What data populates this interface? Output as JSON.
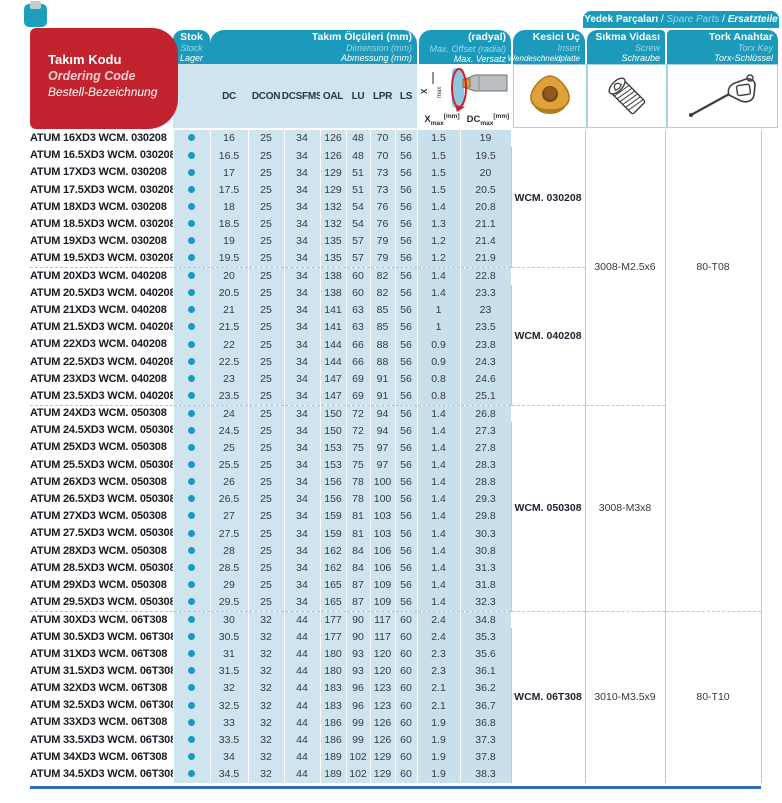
{
  "headers": {
    "ordering_code": {
      "tr": "Takım Kodu",
      "en": "Ordering Code",
      "de": "Bestell-Bezeichnung"
    },
    "stock": {
      "tr": "Stok",
      "en": "Stock",
      "de": "Lager"
    },
    "dimensions": {
      "tr": "Takım Ölçüleri (mm)",
      "en": "Dimension (mm)",
      "de": "Abmessung (mm)"
    },
    "offset": {
      "tr": "Maks. Ofset (radyal)",
      "en": "Max. Offset (radial)",
      "de": "Max. Versatz (radial)"
    },
    "spare_parts": {
      "tr": "Yedek Parçaları",
      "en": "Spare Parts",
      "de": "Ersatzteile",
      "sep": " / "
    },
    "insert": {
      "tr": "Kesici Uç",
      "en": "Insert",
      "de": "Wendeschneidplatte"
    },
    "screw": {
      "tr": "Sıkma Vidası",
      "en": "Screw",
      "de": "Schraube"
    },
    "torx": {
      "tr": "Tork Anahtar",
      "en": "Torx Key",
      "de": "Torx-Schlüssel"
    }
  },
  "dim_columns": [
    "DC",
    "DCON",
    "DCSFMS",
    "OAL",
    "LU",
    "LPR",
    "LS"
  ],
  "offset_sub": {
    "xmax": {
      "base": "X",
      "sub": "max",
      "unit": "[mm]"
    },
    "dcmax": {
      "base": "DC",
      "sub": "max",
      "unit": "[mm]"
    },
    "diagram_label": {
      "base": "X",
      "sub": "max"
    }
  },
  "rows": [
    [
      "ATUM 16XD3 WCM. 030208",
      16,
      25,
      34,
      126,
      48,
      70,
      56,
      1.5,
      19
    ],
    [
      "ATUM 16.5XD3 WCM. 030208",
      16.5,
      25,
      34,
      126,
      48,
      70,
      56,
      1.5,
      19.5
    ],
    [
      "ATUM 17XD3 WCM. 030208",
      17,
      25,
      34,
      129,
      51,
      73,
      56,
      1.5,
      20
    ],
    [
      "ATUM 17.5XD3 WCM. 030208",
      17.5,
      25,
      34,
      129,
      51,
      73,
      56,
      1.5,
      20.5
    ],
    [
      "ATUM 18XD3 WCM. 030208",
      18,
      25,
      34,
      132,
      54,
      76,
      56,
      1.4,
      20.8
    ],
    [
      "ATUM 18.5XD3 WCM. 030208",
      18.5,
      25,
      34,
      132,
      54,
      76,
      56,
      1.3,
      21.1
    ],
    [
      "ATUM 19XD3 WCM. 030208",
      19,
      25,
      34,
      135,
      57,
      79,
      56,
      1.2,
      21.4
    ],
    [
      "ATUM 19.5XD3 WCM. 030208",
      19.5,
      25,
      34,
      135,
      57,
      79,
      56,
      1.2,
      21.9
    ],
    [
      "ATUM 20XD3 WCM. 040208",
      20,
      25,
      34,
      138,
      60,
      82,
      56,
      1.4,
      22.8
    ],
    [
      "ATUM 20.5XD3 WCM. 040208",
      20.5,
      25,
      34,
      138,
      60,
      82,
      56,
      1.4,
      23.3
    ],
    [
      "ATUM 21XD3 WCM. 040208",
      21,
      25,
      34,
      141,
      63,
      85,
      56,
      1,
      23
    ],
    [
      "ATUM 21.5XD3 WCM. 040208",
      21.5,
      25,
      34,
      141,
      63,
      85,
      56,
      1,
      23.5
    ],
    [
      "ATUM 22XD3 WCM. 040208",
      22,
      25,
      34,
      144,
      66,
      88,
      56,
      0.9,
      23.8
    ],
    [
      "ATUM 22.5XD3 WCM. 040208",
      22.5,
      25,
      34,
      144,
      66,
      88,
      56,
      0.9,
      24.3
    ],
    [
      "ATUM 23XD3 WCM. 040208",
      23,
      25,
      34,
      147,
      69,
      91,
      56,
      0.8,
      24.6
    ],
    [
      "ATUM 23.5XD3 WCM. 040208",
      23.5,
      25,
      34,
      147,
      69,
      91,
      56,
      0.8,
      25.1
    ],
    [
      "ATUM 24XD3 WCM. 050308",
      24,
      25,
      34,
      150,
      72,
      94,
      56,
      1.4,
      26.8
    ],
    [
      "ATUM 24.5XD3 WCM. 050308",
      24.5,
      25,
      34,
      150,
      72,
      94,
      56,
      1.4,
      27.3
    ],
    [
      "ATUM 25XD3 WCM. 050308",
      25,
      25,
      34,
      153,
      75,
      97,
      56,
      1.4,
      27.8
    ],
    [
      "ATUM 25.5XD3 WCM. 050308",
      25.5,
      25,
      34,
      153,
      75,
      97,
      56,
      1.4,
      28.3
    ],
    [
      "ATUM 26XD3 WCM. 050308",
      26,
      25,
      34,
      156,
      78,
      100,
      56,
      1.4,
      28.8
    ],
    [
      "ATUM 26.5XD3 WCM. 050308",
      26.5,
      25,
      34,
      156,
      78,
      100,
      56,
      1.4,
      29.3
    ],
    [
      "ATUM 27XD3 WCM. 050308",
      27,
      25,
      34,
      159,
      81,
      103,
      56,
      1.4,
      29.8
    ],
    [
      "ATUM 27.5XD3 WCM. 050308",
      27.5,
      25,
      34,
      159,
      81,
      103,
      56,
      1.4,
      30.3
    ],
    [
      "ATUM 28XD3 WCM. 050308",
      28,
      25,
      34,
      162,
      84,
      106,
      56,
      1.4,
      30.8
    ],
    [
      "ATUM 28.5XD3 WCM. 050308",
      28.5,
      25,
      34,
      162,
      84,
      106,
      56,
      1.4,
      31.3
    ],
    [
      "ATUM 29XD3 WCM. 050308",
      29,
      25,
      34,
      165,
      87,
      109,
      56,
      1.4,
      31.8
    ],
    [
      "ATUM 29.5XD3 WCM. 050308",
      29.5,
      25,
      34,
      165,
      87,
      109,
      56,
      1.4,
      32.3
    ],
    [
      "ATUM 30XD3 WCM. 06T308",
      30,
      32,
      44,
      177,
      90,
      117,
      60,
      2.4,
      34.8
    ],
    [
      "ATUM 30.5XD3 WCM. 06T308",
      30.5,
      32,
      44,
      177,
      90,
      117,
      60,
      2.4,
      35.3
    ],
    [
      "ATUM 31XD3 WCM. 06T308",
      31,
      32,
      44,
      180,
      93,
      120,
      60,
      2.3,
      35.6
    ],
    [
      "ATUM 31.5XD3 WCM. 06T308",
      31.5,
      32,
      44,
      180,
      93,
      120,
      60,
      2.3,
      36.1
    ],
    [
      "ATUM 32XD3 WCM. 06T308",
      32,
      32,
      44,
      183,
      96,
      123,
      60,
      2.1,
      36.2
    ],
    [
      "ATUM 32.5XD3 WCM. 06T308",
      32.5,
      32,
      44,
      183,
      96,
      123,
      60,
      2.1,
      36.7
    ],
    [
      "ATUM 33XD3 WCM. 06T308",
      33,
      32,
      44,
      186,
      99,
      126,
      60,
      1.9,
      36.8
    ],
    [
      "ATUM 33.5XD3 WCM. 06T308",
      33.5,
      32,
      44,
      186,
      99,
      126,
      60,
      1.9,
      37.3
    ],
    [
      "ATUM 34XD3 WCM. 06T308",
      34,
      32,
      44,
      189,
      102,
      129,
      60,
      1.9,
      37.8
    ],
    [
      "ATUM 34.5XD3 WCM. 06T308",
      34.5,
      32,
      44,
      189,
      102,
      129,
      60,
      1.9,
      38.3
    ]
  ],
  "insert_groups": [
    {
      "label": "WCM. 030208",
      "row_start": 0,
      "row_count": 8
    },
    {
      "label": "WCM. 040208",
      "row_start": 8,
      "row_count": 8
    },
    {
      "label": "WCM. 050308",
      "row_start": 16,
      "row_count": 12
    },
    {
      "label": "WCM. 06T308",
      "row_start": 28,
      "row_count": 10
    }
  ],
  "screw_groups": [
    {
      "label": "3008-M2.5x6",
      "row_start": 0,
      "row_count": 16
    },
    {
      "label": "3008-M3x8",
      "row_start": 16,
      "row_count": 12
    },
    {
      "label": "3010-M3.5x9",
      "row_start": 28,
      "row_count": 10
    }
  ],
  "torx_groups": [
    {
      "label": "80-T08",
      "row_start": 0,
      "row_count": 16,
      "divider_top": false
    },
    {
      "label": "",
      "row_start": 16,
      "row_count": 12,
      "divider_top": false
    },
    {
      "label": "80-T10",
      "row_start": 28,
      "row_count": 10,
      "divider_top": true
    }
  ],
  "colors": {
    "teal_header": "#1c9abc",
    "teal_light_text": "#9bd8e8",
    "cell_blue": "#cfe4ef",
    "offset_cell_blue": "#c9dfeb",
    "column_border_blue": "#a6d3e4",
    "dashed_divider": "#9ccbdf",
    "red_box": "#c2242f",
    "red_light_text": "#f2cdd0",
    "stock_dot": "#1b98bb",
    "bottom_rule": "#2e6fb7",
    "insert_gold": "#dfa238"
  }
}
